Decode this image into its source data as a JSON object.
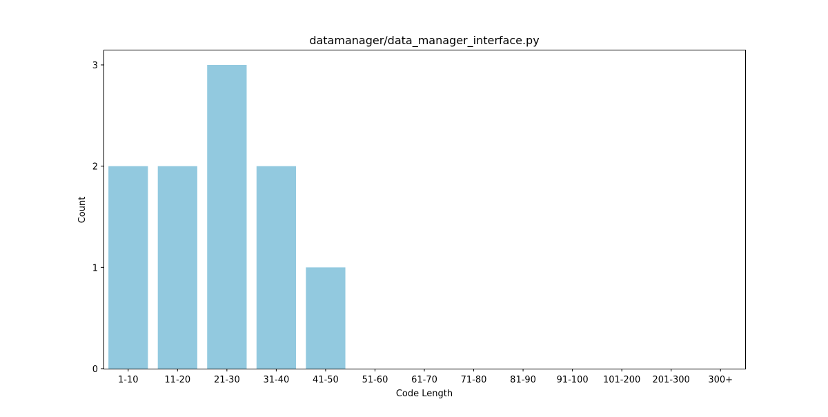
{
  "chart_data": {
    "type": "bar",
    "title": "datamanager/data_manager_interface.py",
    "xlabel": "Code Length",
    "ylabel": "Count",
    "categories": [
      "1-10",
      "11-20",
      "21-30",
      "31-40",
      "41-50",
      "51-60",
      "61-70",
      "71-80",
      "81-90",
      "91-100",
      "101-200",
      "201-300",
      "300+"
    ],
    "values": [
      2,
      2,
      3,
      2,
      1,
      0,
      0,
      0,
      0,
      0,
      0,
      0,
      0
    ],
    "ylim": [
      0,
      3.15
    ],
    "yticks": [
      0,
      1,
      2,
      3
    ],
    "grid": false,
    "bar_color": "#92c9df"
  }
}
